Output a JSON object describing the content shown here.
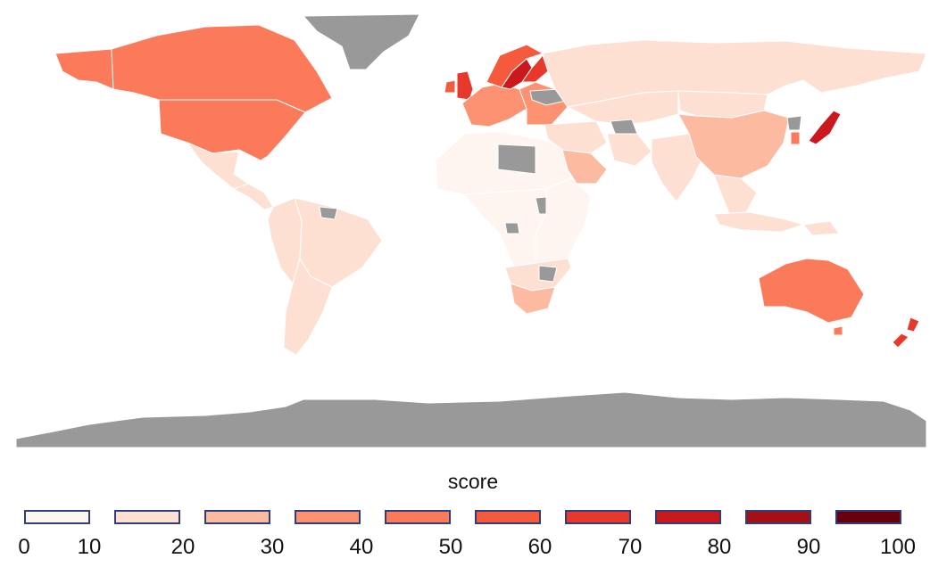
{
  "legend": {
    "title": "score",
    "bins": [
      {
        "range": [
          0,
          10
        ],
        "color": "#fff5f0"
      },
      {
        "range": [
          10,
          20
        ],
        "color": "#fee0d2"
      },
      {
        "range": [
          20,
          30
        ],
        "color": "#fcbba1"
      },
      {
        "range": [
          30,
          40
        ],
        "color": "#fc9272"
      },
      {
        "range": [
          40,
          50
        ],
        "color": "#fb7a5a"
      },
      {
        "range": [
          50,
          60
        ],
        "color": "#f65a3c"
      },
      {
        "range": [
          60,
          70
        ],
        "color": "#e8382b"
      },
      {
        "range": [
          70,
          80
        ],
        "color": "#cb181d"
      },
      {
        "range": [
          80,
          90
        ],
        "color": "#a50f15"
      },
      {
        "range": [
          90,
          100
        ],
        "color": "#67000d"
      }
    ],
    "tick_labels": [
      "0",
      "10",
      "20",
      "30",
      "40",
      "50",
      "60",
      "70",
      "80",
      "90",
      "100"
    ]
  },
  "colors": {
    "no_data": "#999999",
    "background": "#ffffff",
    "border": "#ffffff",
    "legend_border": "#2f3e78"
  },
  "regions": [
    {
      "name": "canada",
      "score": 48
    },
    {
      "name": "united-states",
      "score": 40
    },
    {
      "name": "alaska",
      "score": 40
    },
    {
      "name": "mexico",
      "score": 14
    },
    {
      "name": "central-america",
      "score": 10
    },
    {
      "name": "brazil",
      "score": 13
    },
    {
      "name": "andean-south-america",
      "score": 12
    },
    {
      "name": "southern-cone",
      "score": 10
    },
    {
      "name": "northern-africa",
      "score": 6
    },
    {
      "name": "central-africa",
      "score": 7
    },
    {
      "name": "eastern-africa",
      "score": 8
    },
    {
      "name": "southern-africa",
      "score": 11
    },
    {
      "name": "south-africa",
      "score": 24
    },
    {
      "name": "western-europe",
      "score": 38
    },
    {
      "name": "united-kingdom",
      "score": 60
    },
    {
      "name": "ireland",
      "score": 50
    },
    {
      "name": "eastern-europe",
      "score": 30
    },
    {
      "name": "norway",
      "score": 58
    },
    {
      "name": "sweden",
      "score": 72
    },
    {
      "name": "finland",
      "score": 62
    },
    {
      "name": "russia",
      "score": 18
    },
    {
      "name": "kazakhstan",
      "score": 12
    },
    {
      "name": "middle-east",
      "score": 11
    },
    {
      "name": "saudi-arabia",
      "score": 20
    },
    {
      "name": "iran",
      "score": 14
    },
    {
      "name": "india",
      "score": 13
    },
    {
      "name": "china",
      "score": 20
    },
    {
      "name": "mongolia",
      "score": 18
    },
    {
      "name": "southeast-asia",
      "score": 16
    },
    {
      "name": "indonesia",
      "score": 10
    },
    {
      "name": "papua-new-guinea",
      "score": 12
    },
    {
      "name": "japan",
      "score": 75
    },
    {
      "name": "south-korea",
      "score": 45
    },
    {
      "name": "australia",
      "score": 48
    },
    {
      "name": "tasmania",
      "score": 48
    },
    {
      "name": "new-zealand",
      "score": 60
    },
    {
      "name": "greenland",
      "score": null
    },
    {
      "name": "antarctica",
      "score": null
    },
    {
      "name": "libya",
      "score": null
    },
    {
      "name": "chad",
      "score": null
    },
    {
      "name": "south-sudan",
      "score": null
    },
    {
      "name": "congo",
      "score": null
    },
    {
      "name": "zimbabwe",
      "score": null
    },
    {
      "name": "ukraine",
      "score": null
    },
    {
      "name": "turkmenistan",
      "score": null
    },
    {
      "name": "north-korea",
      "score": null
    },
    {
      "name": "guyana",
      "score": null
    }
  ]
}
